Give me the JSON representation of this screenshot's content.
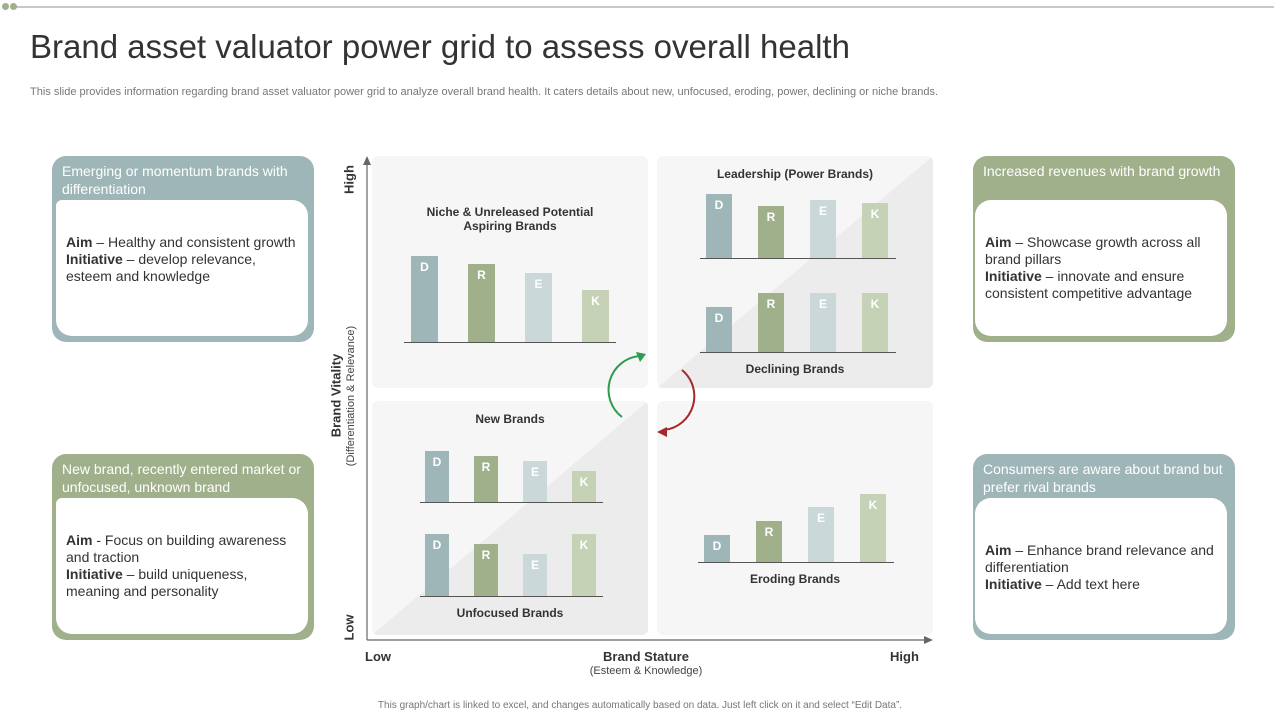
{
  "title": "Brand asset valuator power grid to assess overall health",
  "subtitle": "This slide provides information regarding brand asset valuator power grid to analyze overall brand health. It caters details about new, unfocused, eroding, power, declining or niche brands.",
  "footer": "This graph/chart is linked to excel, and changes automatically based on data. Just left click on it and select “Edit Data”.",
  "colors": {
    "blue": "#9fb6b8",
    "green": "#9fb08a",
    "lightblue": "#cad8da",
    "lightgreen": "#c6d2b6"
  },
  "cards": {
    "top_left": {
      "header": "Emerging or momentum brands with differentiation",
      "aim_label": "Aim",
      "aim_text": " – Healthy and consistent growth",
      "initiative_label": "Initiative",
      "initiative_text": " – develop relevance, esteem and knowledge"
    },
    "bottom_left": {
      "header": "New brand, recently entered market or unfocused, unknown brand",
      "aim_label": "Aim",
      "aim_text": " - Focus on building awareness and traction",
      "initiative_label": "Initiative",
      "initiative_text": " – build uniqueness, meaning and personality"
    },
    "top_right": {
      "header": "Increased revenues with brand growth",
      "aim_label": "Aim",
      "aim_text": " – Showcase growth across all brand pillars",
      "initiative_label": "Initiative",
      "initiative_text": " – innovate and ensure consistent competitive advantage"
    },
    "bottom_right": {
      "header": "Consumers are aware about brand but prefer rival brands",
      "aim_label": "Aim",
      "aim_text": " – Enhance brand relevance and differentiation",
      "initiative_label": "Initiative",
      "initiative_text": " – Add text here"
    }
  },
  "axes": {
    "y_high": "High",
    "y_low": "Low",
    "y_title": "Brand Vitality",
    "y_sub": "(Differentiation & Relevance)",
    "x_low": "Low",
    "x_high": "High",
    "x_title": "Brand Stature",
    "x_sub": "(Esteem & Knowledge)"
  },
  "quadrants": {
    "niche": "Niche & Unreleased Potential\nAspiring Brands",
    "leadership": "Leadership (Power Brands)",
    "declining": "Declining Brands",
    "new": "New Brands",
    "unfocused": "Unfocused Brands",
    "eroding": "Eroding Brands"
  },
  "chart_data": [
    {
      "type": "bar",
      "title": "Niche & Unreleased Potential Aspiring Brands",
      "categories": [
        "D",
        "R",
        "E",
        "K"
      ],
      "values": [
        86,
        78,
        69,
        52
      ]
    },
    {
      "type": "bar",
      "title": "Leadership (Power Brands)",
      "categories": [
        "D",
        "R",
        "E",
        "K"
      ],
      "values": [
        64,
        52,
        58,
        55
      ]
    },
    {
      "type": "bar",
      "title": "Declining Brands",
      "categories": [
        "D",
        "R",
        "E",
        "K"
      ],
      "values": [
        45,
        59,
        59,
        59
      ]
    },
    {
      "type": "bar",
      "title": "New Brands",
      "categories": [
        "D",
        "R",
        "E",
        "K"
      ],
      "values": [
        51,
        46,
        41,
        31
      ]
    },
    {
      "type": "bar",
      "title": "Unfocused Brands",
      "categories": [
        "D",
        "R",
        "E",
        "K"
      ],
      "values": [
        62,
        52,
        42,
        62
      ]
    },
    {
      "type": "bar",
      "title": "Eroding Brands",
      "categories": [
        "D",
        "R",
        "E",
        "K"
      ],
      "values": [
        27,
        41,
        55,
        68
      ]
    }
  ]
}
